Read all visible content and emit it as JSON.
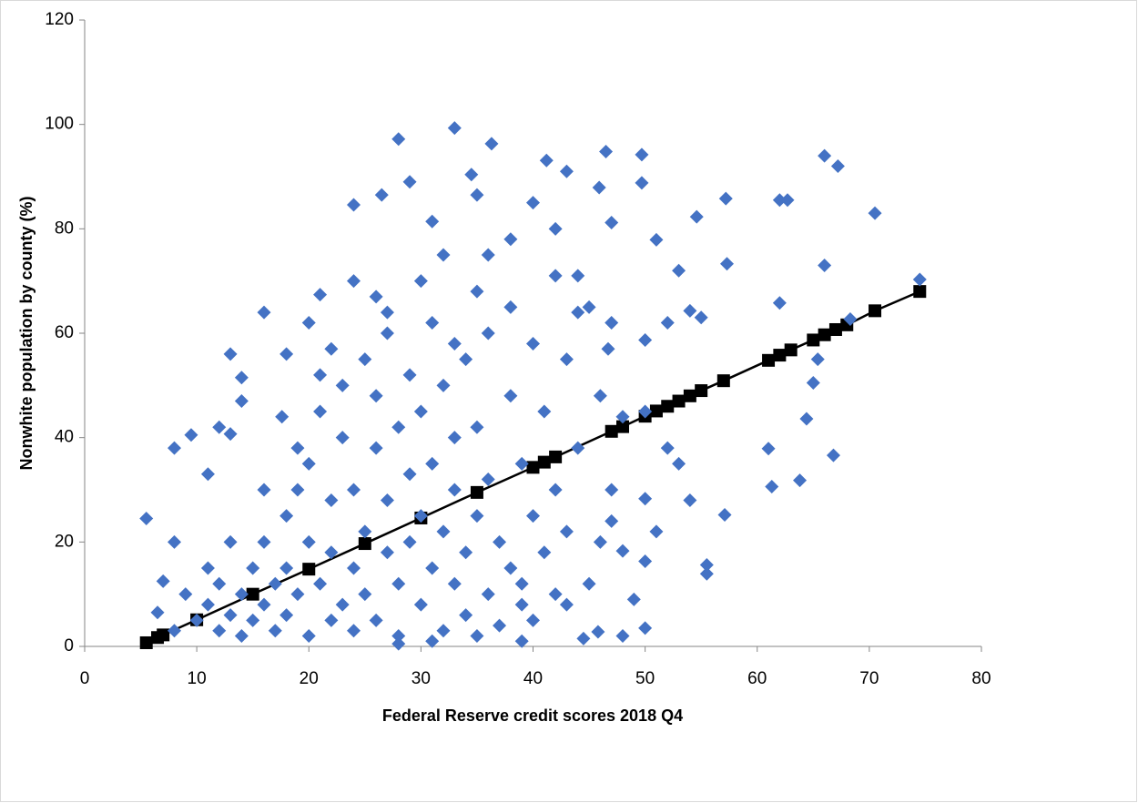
{
  "chart_data": {
    "type": "scatter",
    "x_label": "Federal Reserve credit scores 2018 Q4",
    "y_label": "Nonwhite population by county (%)",
    "xlim": [
      0,
      80
    ],
    "xticks": [
      0,
      10,
      20,
      30,
      40,
      50,
      60,
      70,
      80
    ],
    "ylim": [
      0,
      120
    ],
    "yticks": [
      0,
      20,
      40,
      60,
      80,
      100,
      120
    ],
    "grid": false,
    "series": [
      {
        "color": "#4472c4",
        "marker": "diamond",
        "x": [
          5.5,
          8,
          9.5,
          8,
          33,
          28,
          36.3,
          29,
          24,
          26.5,
          34.5,
          41.2,
          43,
          46.5,
          49.7,
          45.9,
          49.7,
          66,
          67.2,
          70.5,
          62,
          62.7,
          57.2,
          54.6,
          47,
          51,
          57.3,
          66,
          62,
          74.5,
          68.3,
          65.4,
          65,
          61,
          61.3,
          63.8,
          64.4,
          66.8,
          57.1,
          55.5,
          55.5,
          50,
          50,
          48,
          50,
          16,
          21,
          13,
          18,
          14,
          12,
          11,
          7,
          6.5,
          44.5,
          45.8,
          47,
          48,
          39,
          49,
          52,
          54,
          55,
          53,
          50,
          46.7,
          38,
          40,
          35,
          42,
          44,
          31,
          32,
          35,
          26,
          20,
          22,
          17.6,
          14,
          13,
          10,
          11,
          12,
          12,
          13,
          14,
          14,
          15,
          15,
          16,
          16,
          17,
          17,
          18,
          18,
          18,
          19,
          19,
          20,
          20,
          20,
          21,
          21,
          22,
          22,
          22,
          23,
          23,
          23,
          24,
          24,
          24,
          25,
          25,
          25,
          26,
          26,
          26,
          27,
          27,
          27,
          28,
          28,
          28,
          29,
          29,
          29,
          30,
          30,
          30,
          31,
          31,
          31,
          32,
          32,
          32,
          33,
          33,
          33,
          34,
          34,
          34,
          35,
          35,
          36,
          36,
          36,
          37,
          37,
          38,
          38,
          39,
          39,
          40,
          40,
          41,
          41,
          42,
          42,
          43,
          43,
          44,
          45,
          46,
          47,
          48,
          44,
          30,
          27,
          24,
          38,
          40,
          36,
          42,
          33,
          21,
          19,
          16,
          11,
          9,
          8,
          13,
          45,
          47,
          50,
          52,
          53,
          54,
          51,
          46,
          43,
          35,
          28,
          39,
          31
        ],
        "values": [
          24.5,
          38,
          40.5,
          20,
          99.3,
          97.2,
          96.3,
          89,
          84.6,
          86.5,
          90.4,
          93.1,
          91,
          94.8,
          94.2,
          87.9,
          88.8,
          94,
          92,
          83,
          85.5,
          85.5,
          85.8,
          82.3,
          81.2,
          77.9,
          73.3,
          73,
          65.8,
          70.3,
          62.7,
          55,
          50.5,
          37.9,
          30.6,
          31.8,
          43.6,
          36.6,
          25.2,
          15.6,
          13.9,
          16.3,
          28.3,
          2,
          3.5,
          64,
          67.4,
          56,
          56,
          51.5,
          42,
          33,
          12.5,
          6.5,
          1.5,
          2.8,
          24,
          18.3,
          12,
          9,
          62,
          64.3,
          63,
          72,
          58.7,
          57,
          78,
          85,
          86.5,
          71,
          71,
          81.4,
          75,
          68,
          67,
          62,
          57,
          44,
          47,
          40.7,
          5,
          8,
          3,
          12,
          6,
          10,
          2,
          15,
          5,
          20,
          8,
          12,
          3,
          25,
          15,
          6,
          30,
          10,
          2,
          20,
          35,
          12,
          45,
          5,
          28,
          18,
          40,
          8,
          50,
          15,
          30,
          3,
          22,
          55,
          10,
          38,
          5,
          48,
          18,
          28,
          60,
          12,
          42,
          2,
          33,
          20,
          52,
          8,
          25,
          45,
          15,
          35,
          62,
          3,
          22,
          50,
          40,
          12,
          30,
          18,
          55,
          6,
          25,
          42,
          10,
          32,
          60,
          4,
          20,
          15,
          48,
          8,
          35,
          25,
          5,
          18,
          45,
          10,
          30,
          22,
          55,
          38,
          12,
          48,
          30,
          44,
          64,
          70,
          64,
          70,
          65,
          58,
          75,
          80,
          58,
          52,
          38,
          30,
          15,
          10,
          3,
          20,
          65,
          62,
          45,
          38,
          35,
          28,
          22,
          20,
          8,
          2,
          0.5,
          1,
          1
        ]
      },
      {
        "color": "#000000",
        "marker": "square",
        "line": true,
        "x": [
          5.5,
          6.5,
          7,
          10,
          15,
          20,
          25,
          30,
          35,
          40,
          41,
          42,
          47,
          48,
          50,
          51,
          52,
          53,
          54,
          55,
          57,
          61,
          62,
          63,
          65,
          66,
          67,
          68,
          70.5,
          74.5
        ],
        "values": [
          0.7,
          1.7,
          2.2,
          5.1,
          10.0,
          14.8,
          19.7,
          24.6,
          29.5,
          34.3,
          35.3,
          36.3,
          41.2,
          42.1,
          44.1,
          45.1,
          46.0,
          47.0,
          48.0,
          49.0,
          50.9,
          54.8,
          55.8,
          56.8,
          58.7,
          59.7,
          60.7,
          61.6,
          64.3,
          68.0
        ]
      }
    ]
  }
}
